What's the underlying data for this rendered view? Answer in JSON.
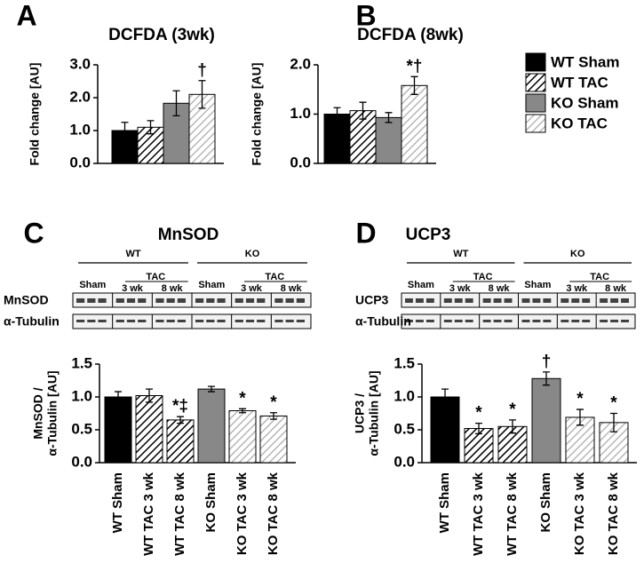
{
  "legend": [
    {
      "name": "WT Sham",
      "style": "solid-black"
    },
    {
      "name": "WT TAC",
      "style": "hatch-black"
    },
    {
      "name": "KO Sham",
      "style": "solid-gray"
    },
    {
      "name": "KO TAC",
      "style": "hatch-gray"
    }
  ],
  "chart_data": [
    {
      "type": "bar",
      "panel": "A",
      "title": "DCFDA (3wk)",
      "ylabel": [
        "Fold change [AU]"
      ],
      "values": [
        1.0,
        1.1,
        1.83,
        2.1
      ],
      "errors": [
        0.25,
        0.2,
        0.38,
        0.42
      ],
      "annotations": [
        null,
        null,
        null,
        "†"
      ],
      "bar_styles": [
        "solid-black",
        "hatch-black",
        "solid-gray",
        "hatch-gray"
      ],
      "ylim": [
        0,
        3
      ],
      "yticks": [
        {
          "value": 0,
          "label": "0.0"
        },
        {
          "value": 1,
          "label": "1.0"
        },
        {
          "value": 2,
          "label": "2.0"
        },
        {
          "value": 3,
          "label": "3.0"
        }
      ]
    },
    {
      "type": "bar",
      "panel": "B",
      "title": "DCFDA (8wk)",
      "ylabel": [
        "Fold change [AU]"
      ],
      "values": [
        1.0,
        1.07,
        0.93,
        1.58
      ],
      "errors": [
        0.13,
        0.17,
        0.1,
        0.18
      ],
      "annotations": [
        null,
        null,
        null,
        "*†"
      ],
      "bar_styles": [
        "solid-black",
        "hatch-black",
        "solid-gray",
        "hatch-gray"
      ],
      "ylim": [
        0,
        2
      ],
      "yticks": [
        {
          "value": 0,
          "label": "0.0"
        },
        {
          "value": 1,
          "label": "1.0"
        },
        {
          "value": 2,
          "label": "2.0"
        }
      ]
    },
    {
      "type": "bar",
      "panel": "C",
      "title": "MnSOD",
      "ylabel": [
        "MnSOD /",
        "α-Tubulin [AU]"
      ],
      "blot": {
        "groups": [
          "WT",
          "KO"
        ],
        "sham": "Sham",
        "tac": "TAC",
        "weeks": [
          "3 wk",
          "8 wk"
        ],
        "rows": [
          "MnSOD",
          "α-Tubulin"
        ]
      },
      "categories": [
        "WT Sham",
        "WT TAC 3 wk",
        "WT TAC 8 wk",
        "KO Sham",
        "KO TAC 3 wk",
        "KO TAC 8 wk"
      ],
      "values": [
        1.0,
        1.02,
        0.65,
        1.12,
        0.79,
        0.71
      ],
      "errors": [
        0.08,
        0.1,
        0.05,
        0.04,
        0.03,
        0.05
      ],
      "annotations": [
        null,
        null,
        "*‡",
        null,
        "*",
        "*"
      ],
      "bar_styles": [
        "solid-black",
        "hatch-black",
        "hatch-black",
        "solid-gray",
        "hatch-gray",
        "hatch-gray"
      ],
      "ylim": [
        0,
        1.5
      ],
      "yticks": [
        {
          "value": 0,
          "label": "0.0"
        },
        {
          "value": 0.5,
          "label": "0.5"
        },
        {
          "value": 1,
          "label": "1.0"
        },
        {
          "value": 1.5,
          "label": "1.5"
        }
      ]
    },
    {
      "type": "bar",
      "panel": "D",
      "title": "UCP3",
      "ylabel": [
        "UCP3 /",
        "α-Tubulin [AU]"
      ],
      "blot": {
        "groups": [
          "WT",
          "KO"
        ],
        "sham": "Sham",
        "tac": "TAC",
        "weeks": [
          "3 wk",
          "8 wk"
        ],
        "rows": [
          "UCP3",
          "α-Tubulin"
        ]
      },
      "categories": [
        "WT Sham",
        "WT TAC 3 wk",
        "WT TAC 8 wk",
        "KO Sham",
        "KO TAC 3 wk",
        "KO TAC 8 wk"
      ],
      "values": [
        1.0,
        0.52,
        0.55,
        1.28,
        0.69,
        0.61
      ],
      "errors": [
        0.12,
        0.08,
        0.1,
        0.1,
        0.12,
        0.14
      ],
      "annotations": [
        null,
        "*",
        "*",
        "†",
        "*",
        "*"
      ],
      "bar_styles": [
        "solid-black",
        "hatch-black",
        "hatch-black",
        "solid-gray",
        "hatch-gray",
        "hatch-gray"
      ],
      "ylim": [
        0,
        1.5
      ],
      "yticks": [
        {
          "value": 0,
          "label": "0.0"
        },
        {
          "value": 0.5,
          "label": "0.5"
        },
        {
          "value": 1,
          "label": "1.0"
        },
        {
          "value": 1.5,
          "label": "1.5"
        }
      ]
    }
  ]
}
